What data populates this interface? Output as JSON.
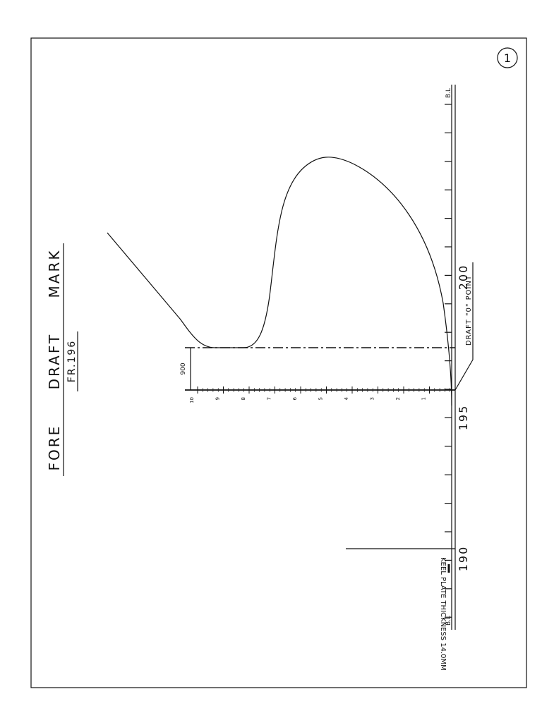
{
  "header": {
    "title": "FORE DRAFT MARK",
    "subtitle": "FR.196",
    "sheet": "1"
  },
  "baseline": {
    "top_label": "B.L",
    "bottom_label": "B.L"
  },
  "frames": [
    "200",
    "195",
    "190"
  ],
  "draft_zero": "DRAFT \"0\" POINT",
  "dimension": "900",
  "keel_note": "KEEL PLATE THICKNESS 14.0MM",
  "scale_labels": [
    "1",
    "2",
    "3",
    "4",
    "5",
    "6",
    "7",
    "8",
    "9",
    "10"
  ]
}
